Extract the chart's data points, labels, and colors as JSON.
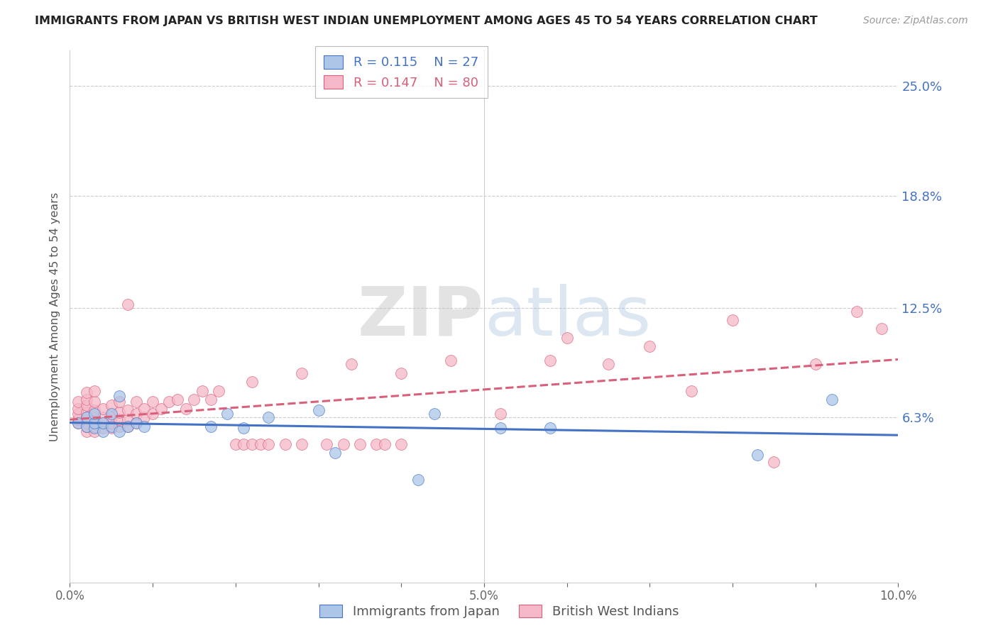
{
  "title": "IMMIGRANTS FROM JAPAN VS BRITISH WEST INDIAN UNEMPLOYMENT AMONG AGES 45 TO 54 YEARS CORRELATION CHART",
  "source": "Source: ZipAtlas.com",
  "ylabel": "Unemployment Among Ages 45 to 54 years",
  "xlim": [
    0.0,
    0.1
  ],
  "ylim": [
    -0.03,
    0.27
  ],
  "ytick_values": [
    0.063,
    0.125,
    0.188,
    0.25
  ],
  "ytick_labels": [
    "6.3%",
    "12.5%",
    "18.8%",
    "25.0%"
  ],
  "xtick_values": [
    0.0,
    0.01,
    0.02,
    0.03,
    0.04,
    0.05,
    0.06,
    0.07,
    0.08,
    0.09,
    0.1
  ],
  "xtick_labels": [
    "0.0%",
    "",
    "",
    "",
    "",
    "5.0%",
    "",
    "",
    "",
    "",
    "10.0%"
  ],
  "japan_R": 0.115,
  "japan_N": 27,
  "bwi_R": 0.147,
  "bwi_N": 80,
  "japan_color": "#adc6e8",
  "bwi_color": "#f5b8c8",
  "japan_line_color": "#4472c4",
  "bwi_line_color": "#d9607a",
  "watermark_zip": "ZIP",
  "watermark_atlas": "atlas",
  "japan_x": [
    0.001,
    0.002,
    0.002,
    0.003,
    0.003,
    0.003,
    0.004,
    0.004,
    0.005,
    0.005,
    0.006,
    0.006,
    0.007,
    0.008,
    0.009,
    0.017,
    0.019,
    0.021,
    0.024,
    0.03,
    0.032,
    0.042,
    0.044,
    0.052,
    0.058,
    0.083,
    0.092
  ],
  "japan_y": [
    0.06,
    0.058,
    0.063,
    0.057,
    0.06,
    0.065,
    0.055,
    0.06,
    0.058,
    0.065,
    0.055,
    0.075,
    0.058,
    0.06,
    0.058,
    0.058,
    0.065,
    0.057,
    0.063,
    0.067,
    0.043,
    0.028,
    0.065,
    0.057,
    0.057,
    0.042,
    0.073
  ],
  "bwi_x": [
    0.001,
    0.001,
    0.001,
    0.001,
    0.001,
    0.002,
    0.002,
    0.002,
    0.002,
    0.002,
    0.002,
    0.002,
    0.002,
    0.003,
    0.003,
    0.003,
    0.003,
    0.003,
    0.003,
    0.003,
    0.004,
    0.004,
    0.004,
    0.004,
    0.005,
    0.005,
    0.005,
    0.005,
    0.006,
    0.006,
    0.006,
    0.006,
    0.007,
    0.007,
    0.007,
    0.007,
    0.008,
    0.008,
    0.008,
    0.009,
    0.009,
    0.01,
    0.01,
    0.011,
    0.012,
    0.013,
    0.014,
    0.015,
    0.016,
    0.017,
    0.018,
    0.02,
    0.021,
    0.022,
    0.023,
    0.024,
    0.026,
    0.028,
    0.031,
    0.033,
    0.035,
    0.037,
    0.038,
    0.04,
    0.022,
    0.028,
    0.034,
    0.04,
    0.046,
    0.052,
    0.058,
    0.06,
    0.065,
    0.07,
    0.075,
    0.08,
    0.085,
    0.09,
    0.095,
    0.098
  ],
  "bwi_y": [
    0.06,
    0.062,
    0.065,
    0.068,
    0.072,
    0.055,
    0.058,
    0.06,
    0.063,
    0.066,
    0.07,
    0.073,
    0.077,
    0.055,
    0.058,
    0.06,
    0.063,
    0.067,
    0.072,
    0.078,
    0.057,
    0.06,
    0.063,
    0.068,
    0.057,
    0.06,
    0.063,
    0.07,
    0.058,
    0.062,
    0.066,
    0.072,
    0.058,
    0.062,
    0.067,
    0.127,
    0.06,
    0.065,
    0.072,
    0.063,
    0.068,
    0.065,
    0.072,
    0.068,
    0.072,
    0.073,
    0.068,
    0.073,
    0.078,
    0.073,
    0.078,
    0.048,
    0.048,
    0.048,
    0.048,
    0.048,
    0.048,
    0.048,
    0.048,
    0.048,
    0.048,
    0.048,
    0.048,
    0.048,
    0.083,
    0.088,
    0.093,
    0.088,
    0.095,
    0.065,
    0.095,
    0.108,
    0.093,
    0.103,
    0.078,
    0.118,
    0.038,
    0.093,
    0.123,
    0.113
  ]
}
